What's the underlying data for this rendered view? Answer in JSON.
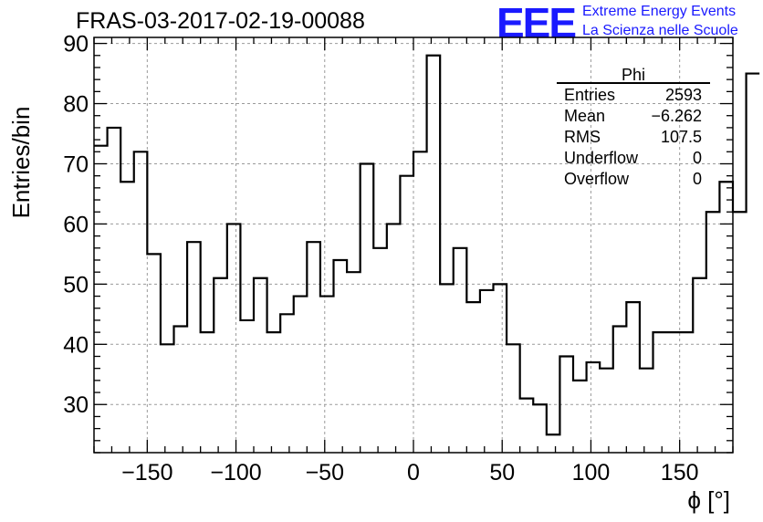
{
  "header": {
    "title": "FRAS-03-2017-02-19-00088",
    "logo_text": "EEE",
    "logo_line1": "Extreme Energy Events",
    "logo_line2": "La Scienza nelle Scuole",
    "logo_color": "#1a1aff"
  },
  "stats": {
    "name": "Phi",
    "rows": [
      {
        "label": "Entries",
        "value": "2593"
      },
      {
        "label": "Mean",
        "value": "−6.262"
      },
      {
        "label": "RMS",
        "value": "107.5"
      },
      {
        "label": "Underflow",
        "value": "0"
      },
      {
        "label": "Overflow",
        "value": "0"
      }
    ]
  },
  "chart_data": {
    "type": "histogram",
    "title": "FRAS-03-2017-02-19-00088",
    "xlabel": "ϕ [°]",
    "ylabel": "Entries/bin",
    "xlim": [
      -180,
      180
    ],
    "ylim": [
      22,
      91
    ],
    "grid": true,
    "bin_width": 7.5,
    "bin_edges_start": -180,
    "values": [
      73,
      76,
      67,
      72,
      55,
      40,
      43,
      57,
      42,
      51,
      60,
      44,
      51,
      42,
      45,
      48,
      57,
      48,
      54,
      52,
      70,
      56,
      60,
      68,
      72,
      88,
      50,
      56,
      47,
      49,
      50,
      40,
      31,
      30,
      25,
      38,
      34,
      37,
      36,
      43,
      47,
      36,
      42,
      42,
      42,
      51,
      62,
      67,
      62,
      85
    ],
    "x_ticks": [
      -150,
      -100,
      -50,
      0,
      50,
      100,
      150
    ],
    "x_tick_labels": [
      "−150",
      "−100",
      "−50",
      "0",
      "50",
      "100",
      "150"
    ],
    "y_ticks": [
      30,
      40,
      50,
      60,
      70,
      80,
      90
    ],
    "y_tick_labels": [
      "30",
      "40",
      "50",
      "60",
      "70",
      "80",
      "90"
    ],
    "line_color": "#000000",
    "grid_color": "#9a9a9a"
  }
}
